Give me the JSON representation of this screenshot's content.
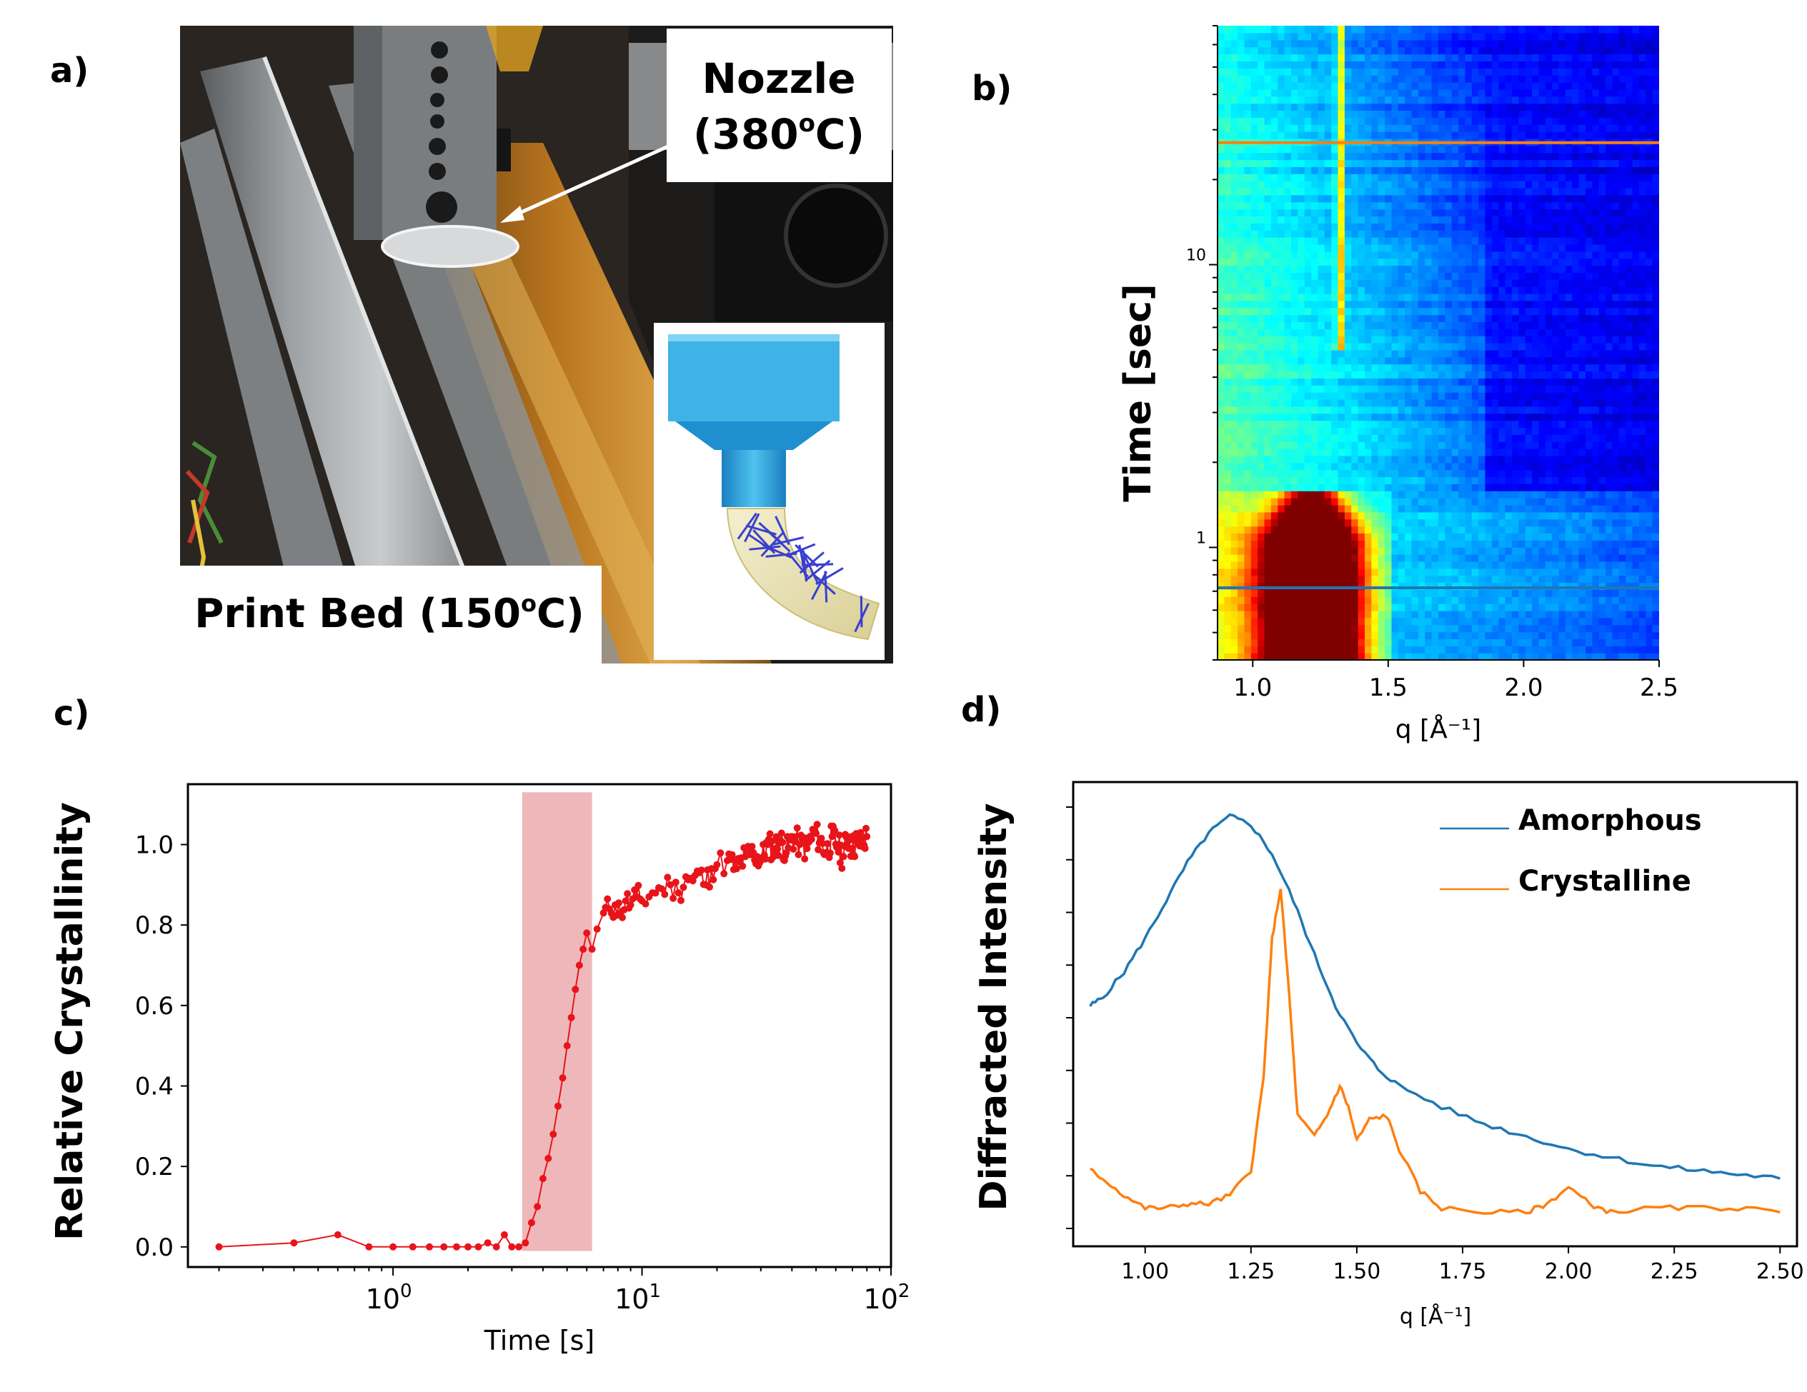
{
  "panels": {
    "a": "a)",
    "b": "b)",
    "c": "c)",
    "d": "d)"
  },
  "photo": {
    "nozzle_label_line1": "Nozzle",
    "nozzle_label_line2_main": "(380",
    "nozzle_label_line2_sup": "o",
    "nozzle_label_line2_end": "C)",
    "bed_label_main": "Print Bed (150",
    "bed_label_sup": "o",
    "bed_label_end": "C)"
  },
  "colors": {
    "red_series": "#e8141a",
    "highlight_band": "#e8a0a3",
    "amorphous": "#1f77b4",
    "crystalline": "#ff7f0e",
    "heatmap_deep": "#00008b",
    "heatmap_hot": "#8b0000"
  },
  "chart_data": [
    {
      "panel": "b",
      "type": "heatmap",
      "xlabel": "q [Å⁻¹]",
      "ylabel": "Time [sec]",
      "xlim": [
        0.87,
        2.5
      ],
      "ylim": [
        0.4,
        70
      ],
      "yscale": "log",
      "colormap": "jet",
      "xticks": [
        "1.0",
        "1.5",
        "2.0",
        "2.5"
      ],
      "xtick_values": [
        1.0,
        1.5,
        2.0,
        2.5
      ],
      "yticks": [
        "1",
        "10"
      ],
      "ytick_values": [
        1,
        10
      ],
      "features": {
        "amorphous_halo_center_q": 1.22,
        "amorphous_halo_time_range": [
          0.4,
          1.6
        ],
        "crystalline_peak_q": 1.32,
        "crystalline_peak_onset_time": 5
      },
      "cut_lines": [
        {
          "name": "Amorphous",
          "time": 0.72,
          "color": "#1f77b4"
        },
        {
          "name": "Crystalline",
          "time": 27,
          "color": "#ff7f0e"
        }
      ]
    },
    {
      "panel": "c",
      "type": "line",
      "xlabel": "Time [s]",
      "ylabel": "Relative Crystallinity",
      "xscale": "log",
      "xlim": [
        0.15,
        100
      ],
      "ylim": [
        -0.05,
        1.15
      ],
      "xticks": [
        "10",
        "10",
        "10"
      ],
      "xtick_exponents": [
        "0",
        "1",
        "2"
      ],
      "xtick_values": [
        1,
        10,
        100
      ],
      "yticks": [
        "0.0",
        "0.2",
        "0.4",
        "0.6",
        "0.8",
        "1.0"
      ],
      "ytick_values": [
        0.0,
        0.2,
        0.4,
        0.6,
        0.8,
        1.0
      ],
      "highlight_band": {
        "x": [
          3.3,
          6.3
        ]
      },
      "series": [
        {
          "marker": "circle",
          "x": [
            0.2,
            0.4,
            0.6,
            0.8,
            1.0,
            1.2,
            1.4,
            1.6,
            1.8,
            2.0,
            2.2,
            2.4,
            2.6,
            2.8,
            3.0,
            3.2,
            3.4,
            3.6,
            3.8,
            4.0,
            4.2,
            4.4,
            4.6,
            4.8,
            5.0,
            5.2,
            5.4,
            5.6,
            5.8,
            6.0,
            6.3,
            6.6,
            7.0,
            7.4,
            7.8,
            8.2,
            8.6,
            9.0,
            9.5,
            10,
            11,
            12,
            13,
            14,
            15,
            16,
            17,
            18,
            19,
            20,
            22,
            24,
            26,
            28,
            30,
            32,
            34,
            36,
            38,
            40,
            43,
            46,
            49,
            52,
            55,
            58,
            61,
            64,
            67,
            70,
            73,
            76,
            80
          ],
          "values": [
            0.0,
            0.01,
            0.03,
            0.0,
            0.0,
            0.0,
            0.0,
            0.0,
            0.0,
            0.0,
            0.0,
            0.01,
            0.0,
            0.03,
            0.0,
            0.0,
            0.01,
            0.06,
            0.1,
            0.17,
            0.22,
            0.28,
            0.35,
            0.42,
            0.5,
            0.57,
            0.64,
            0.7,
            0.74,
            0.78,
            0.74,
            0.79,
            0.83,
            0.84,
            0.85,
            0.83,
            0.86,
            0.85,
            0.87,
            0.86,
            0.88,
            0.89,
            0.9,
            0.88,
            0.92,
            0.91,
            0.93,
            0.9,
            0.94,
            0.95,
            0.96,
            0.94,
            0.97,
            0.98,
            0.96,
            1.0,
            0.99,
            1.01,
            0.98,
            1.02,
            1.0,
            0.99,
            1.03,
            1.01,
            0.98,
            1.02,
            1.0,
            0.97,
            1.02,
            0.99,
            1.01,
            1.0,
            1.02
          ]
        }
      ]
    },
    {
      "panel": "d",
      "type": "line",
      "xlabel": "q [Å⁻¹]",
      "ylabel": "Diffracted Intensity",
      "xlim": [
        0.83,
        2.54
      ],
      "ylim": [
        0,
        1
      ],
      "xticks": [
        "1.00",
        "1.25",
        "1.50",
        "1.75",
        "2.00",
        "2.25",
        "2.50"
      ],
      "xtick_values": [
        1.0,
        1.25,
        1.5,
        1.75,
        2.0,
        2.25,
        2.5
      ],
      "ytick_count": 9,
      "legend_position": "top-right",
      "series": [
        {
          "name": "Amorphous",
          "color": "#1f77b4",
          "x": [
            0.87,
            0.9,
            0.95,
            1.0,
            1.05,
            1.1,
            1.15,
            1.2,
            1.25,
            1.3,
            1.35,
            1.4,
            1.45,
            1.5,
            1.55,
            1.6,
            1.7,
            1.8,
            1.9,
            2.0,
            2.1,
            2.2,
            2.3,
            2.4,
            2.5
          ],
          "values": [
            0.52,
            0.54,
            0.6,
            0.68,
            0.77,
            0.86,
            0.93,
            0.97,
            0.95,
            0.88,
            0.77,
            0.64,
            0.52,
            0.43,
            0.37,
            0.33,
            0.28,
            0.24,
            0.21,
            0.18,
            0.16,
            0.14,
            0.13,
            0.12,
            0.11
          ]
        },
        {
          "name": "Crystalline",
          "color": "#ff7f0e",
          "x": [
            0.87,
            0.9,
            0.95,
            1.0,
            1.05,
            1.1,
            1.15,
            1.2,
            1.25,
            1.28,
            1.3,
            1.32,
            1.34,
            1.36,
            1.4,
            1.43,
            1.46,
            1.48,
            1.5,
            1.53,
            1.57,
            1.6,
            1.65,
            1.7,
            1.8,
            1.9,
            1.95,
            2.0,
            2.05,
            2.1,
            2.2,
            2.3,
            2.4,
            2.5
          ],
          "values": [
            0.13,
            0.11,
            0.07,
            0.04,
            0.04,
            0.05,
            0.05,
            0.07,
            0.13,
            0.35,
            0.68,
            0.8,
            0.55,
            0.26,
            0.21,
            0.26,
            0.33,
            0.28,
            0.2,
            0.25,
            0.26,
            0.18,
            0.08,
            0.04,
            0.03,
            0.03,
            0.05,
            0.09,
            0.05,
            0.03,
            0.04,
            0.04,
            0.04,
            0.03
          ]
        }
      ]
    }
  ]
}
